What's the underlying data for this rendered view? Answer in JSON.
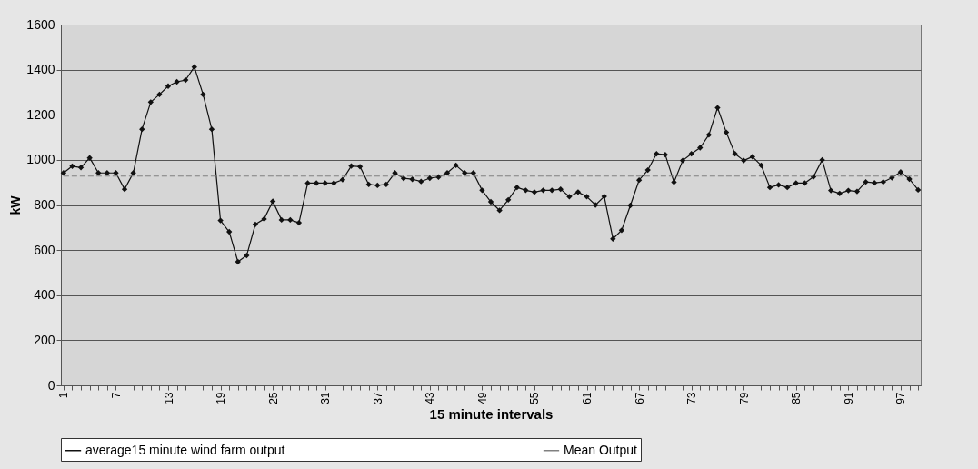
{
  "chart_data": {
    "type": "line",
    "xlabel": "15 minute intervals",
    "ylabel": "kW",
    "categories": [
      "1",
      null,
      null,
      null,
      null,
      null,
      "7",
      null,
      null,
      null,
      null,
      null,
      "13",
      null,
      null,
      null,
      null,
      null,
      "19",
      null,
      null,
      null,
      null,
      null,
      "25",
      null,
      null,
      null,
      null,
      null,
      "31",
      null,
      null,
      null,
      null,
      null,
      "37",
      null,
      null,
      null,
      null,
      null,
      "43",
      null,
      null,
      null,
      null,
      null,
      "49",
      null,
      null,
      null,
      null,
      null,
      "55",
      null,
      null,
      null,
      null,
      null,
      "61",
      null,
      null,
      null,
      null,
      null,
      "67",
      null,
      null,
      null,
      null,
      null,
      "73",
      null,
      null,
      null,
      null,
      null,
      "79",
      null,
      null,
      null,
      null,
      null,
      "85",
      null,
      null,
      null,
      null,
      null,
      "91",
      null,
      null,
      null,
      null,
      null,
      "97",
      null,
      null
    ],
    "series": [
      {
        "name": "average15 minute wind farm output",
        "color": "#111111",
        "marker": "diamond",
        "line_style": "solid",
        "values": [
          942,
          972,
          966,
          1009,
          942,
          942,
          942,
          870,
          942,
          1136,
          1256,
          1290,
          1327,
          1346,
          1354,
          1412,
          1290,
          1136,
          731,
          681,
          548,
          576,
          714,
          738,
          816,
          734,
          734,
          721,
          897,
          897,
          897,
          897,
          912,
          973,
          970,
          891,
          887,
          891,
          942,
          918,
          914,
          904,
          919,
          924,
          942,
          976,
          942,
          942,
          865,
          814,
          776,
          823,
          878,
          865,
          857,
          865,
          865,
          870,
          837,
          857,
          837,
          800,
          838,
          650,
          688,
          798,
          910,
          955,
          1027,
          1023,
          901,
          997,
          1027,
          1054,
          1111,
          1231,
          1122,
          1027,
          997,
          1014,
          976,
          878,
          889,
          878,
          897,
          897,
          925,
          1000,
          864,
          851,
          864,
          860,
          902,
          898,
          902,
          921,
          946,
          915,
          867
        ]
      },
      {
        "name": "Mean Output",
        "color": "#808080",
        "marker": "none",
        "line_style": "dashed",
        "values": [
          928,
          928,
          928,
          928,
          928,
          928,
          928,
          928,
          928,
          928,
          928,
          928,
          928,
          928,
          928,
          928,
          928,
          928,
          928,
          928,
          928,
          928,
          928,
          928,
          928,
          928,
          928,
          928,
          928,
          928,
          928,
          928,
          928,
          928,
          928,
          928,
          928,
          928,
          928,
          928,
          928,
          928,
          928,
          928,
          928,
          928,
          928,
          928,
          928,
          928,
          928,
          928,
          928,
          928,
          928,
          928,
          928,
          928,
          928,
          928,
          928,
          928,
          928,
          928,
          928,
          928,
          928,
          928,
          928,
          928,
          928,
          928,
          928,
          928,
          928,
          928,
          928,
          928,
          928,
          928,
          928,
          928,
          928,
          928,
          928,
          928,
          928,
          928,
          928,
          928,
          928,
          928,
          928,
          928,
          928,
          928,
          928,
          928,
          928
        ]
      }
    ],
    "ylim": [
      0,
      1600
    ],
    "yticks": [
      0,
      200,
      400,
      600,
      800,
      1000,
      1200,
      1400,
      1600
    ],
    "grid": "y",
    "legend": "bottom"
  }
}
